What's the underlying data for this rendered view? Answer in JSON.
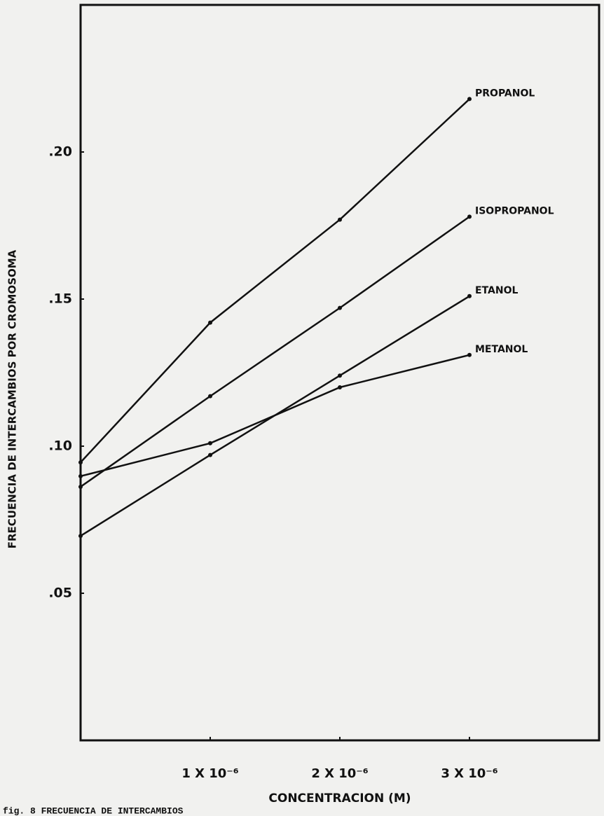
{
  "chart_data": {
    "type": "line",
    "xlabel": "CONCENTRACION (M)",
    "ylabel": "FRECUENCIA DE INTERCAMBIOS POR CROMOSOMA",
    "caption": "fig. 8  FRECUENCIA DE INTERCAMBIOS",
    "x": [
      0,
      1e-06,
      2e-06,
      3e-06
    ],
    "series": [
      {
        "name": "PROPANOL",
        "color": "#111111",
        "values": [
          0.0945,
          0.142,
          0.177,
          0.218
        ]
      },
      {
        "name": "ISOPROPANOL",
        "color": "#111111",
        "values": [
          0.0862,
          0.117,
          0.147,
          0.178
        ]
      },
      {
        "name": "ETANOL",
        "color": "#111111",
        "values": [
          0.0695,
          0.097,
          0.124,
          0.151
        ]
      },
      {
        "name": "METANOL",
        "color": "#111111",
        "values": [
          0.0898,
          0.101,
          0.12,
          0.131
        ]
      }
    ],
    "xlim": [
      0,
      4e-06
    ],
    "ylim": [
      0,
      0.25
    ],
    "xticks": [
      {
        "value": 1e-06,
        "label": "1 X 10⁻⁶"
      },
      {
        "value": 2e-06,
        "label": "2 X 10⁻⁶"
      },
      {
        "value": 3e-06,
        "label": "3 X 10⁻⁶"
      }
    ],
    "yticks": [
      {
        "value": 0.05,
        "label": ".05"
      },
      {
        "value": 0.1,
        "label": ".10"
      },
      {
        "value": 0.15,
        "label": ".15"
      },
      {
        "value": 0.2,
        "label": ".20"
      }
    ],
    "grid": false
  }
}
